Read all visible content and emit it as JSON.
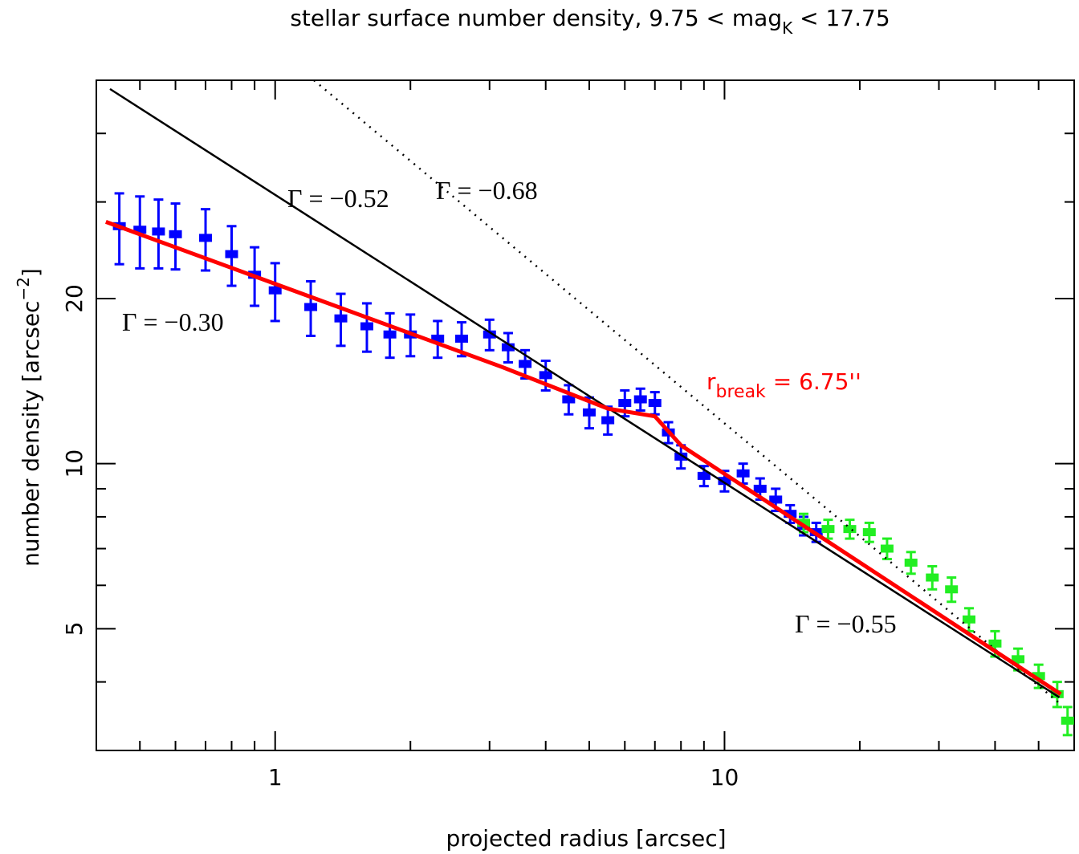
{
  "chart_data": {
    "type": "scatter",
    "title": [
      "stellar surface number density, 9.75 < mag",
      "K",
      " < 17.75"
    ],
    "x_label": "projected radius [arcsec]",
    "y_label": [
      "number density [arcsec",
      "−2",
      "]"
    ],
    "xscale": "log",
    "yscale": "log",
    "xlim": [
      0.4,
      60
    ],
    "ylim": [
      3,
      50
    ],
    "xticks": [
      1,
      10
    ],
    "yticks": [
      5,
      10,
      20
    ],
    "xminor": [
      0.5,
      0.6,
      0.7,
      0.8,
      0.9,
      2,
      3,
      4,
      5,
      6,
      7,
      8,
      9,
      20,
      30,
      40,
      50
    ],
    "yminor": [
      4,
      6,
      7,
      8,
      9,
      30,
      40
    ],
    "series": [
      {
        "color": "#0000ff",
        "x": [
          0.45,
          0.5,
          0.55,
          0.6,
          0.7,
          0.8,
          0.9,
          1.0,
          1.2,
          1.4,
          1.6,
          1.8,
          2.0,
          2.3,
          2.6,
          3.0,
          3.3,
          3.6,
          4.0,
          4.5,
          5.0,
          5.5,
          6.0,
          6.5,
          7.0,
          7.5,
          8.0,
          9.0,
          10,
          11,
          12,
          13,
          14,
          15,
          16
        ],
        "values": [
          27.1,
          26.7,
          26.5,
          26.2,
          25.8,
          24.1,
          22.1,
          20.7,
          19.3,
          18.4,
          17.8,
          17.2,
          17.2,
          16.9,
          16.9,
          17.2,
          16.3,
          15.2,
          14.5,
          13.1,
          12.4,
          12.0,
          12.9,
          13.1,
          12.9,
          11.4,
          10.3,
          9.5,
          9.3,
          9.6,
          9.0,
          8.6,
          8.1,
          7.7,
          7.5
        ],
        "errors": [
          4,
          4,
          3.8,
          3.6,
          3.3,
          3,
          2.7,
          2.5,
          2.2,
          2,
          1.8,
          1.6,
          1.5,
          1.3,
          1.2,
          1.1,
          1,
          0.9,
          0.9,
          0.8,
          0.8,
          0.7,
          0.7,
          0.6,
          0.6,
          0.5,
          0.5,
          0.4,
          0.4,
          0.4,
          0.4,
          0.4,
          0.3,
          0.3,
          0.3
        ]
      },
      {
        "color": "#22ee22",
        "x": [
          15,
          17,
          19,
          21,
          23,
          26,
          29,
          32,
          35,
          40,
          45,
          50,
          55,
          58
        ],
        "values": [
          7.8,
          7.6,
          7.6,
          7.5,
          7.0,
          6.6,
          6.2,
          5.9,
          5.2,
          4.7,
          4.4,
          4.1,
          3.8,
          3.4
        ],
        "errors": [
          0.3,
          0.3,
          0.3,
          0.3,
          0.3,
          0.3,
          0.3,
          0.3,
          0.25,
          0.25,
          0.2,
          0.2,
          0.2,
          0.2
        ]
      }
    ],
    "lines": [
      {
        "color": "#000000",
        "style": "solid",
        "x": [
          0.429,
          55.6
        ],
        "values": [
          48.2,
          3.75
        ]
      },
      {
        "color": "#000000",
        "style": "dotted",
        "x": [
          1.22,
          55.6
        ],
        "values": [
          50,
          3.66
        ]
      },
      {
        "color": "#ff0000",
        "style": "thick",
        "x": [
          0.42,
          3.2,
          5.5,
          7.0,
          8.0,
          56
        ],
        "values": [
          27.6,
          15.0,
          12.6,
          12.2,
          10.8,
          3.8
        ]
      }
    ],
    "annotations": [
      {
        "text": "Γ = −0.52",
        "color": "#000000"
      },
      {
        "text": "Γ = −0.68",
        "color": "#000000"
      },
      {
        "text": "Γ = −0.30",
        "color": "#ff0000"
      },
      {
        "text": "Γ = −0.55",
        "color": "#ff0000"
      }
    ],
    "break_label": {
      "parts": [
        "r",
        "break",
        " = 6.75''"
      ],
      "color": "#ff0000"
    }
  }
}
